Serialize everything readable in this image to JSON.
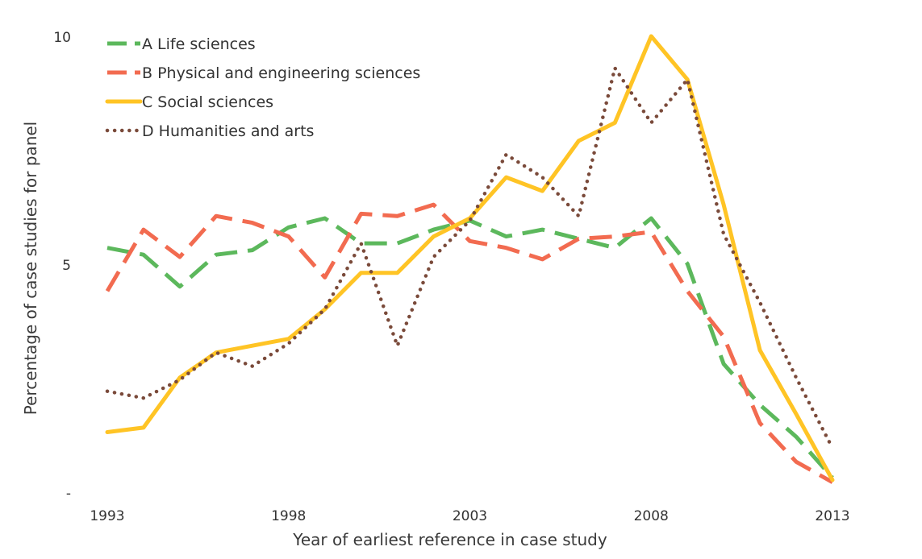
{
  "chart_data": {
    "type": "line",
    "xlabel": "Year of earliest reference in case study",
    "ylabel": "Percentage of case studies for panel",
    "x": [
      1993,
      1994,
      1995,
      1996,
      1997,
      1998,
      1999,
      2000,
      2001,
      2002,
      2003,
      2004,
      2005,
      2006,
      2007,
      2008,
      2009,
      2010,
      2011,
      2012,
      2013
    ],
    "xlim": [
      1993,
      2013
    ],
    "ylim": [
      0,
      10
    ],
    "x_ticks": [
      "1993",
      "1998",
      "2003",
      "2008",
      "2013"
    ],
    "y_ticks": [
      "-",
      "5",
      "10"
    ],
    "grid": false,
    "legend_position": "top-left",
    "series": [
      {
        "name": "A Life sciences",
        "color": "#5cb85c",
        "dash": "dashed",
        "values": [
          5.35,
          5.2,
          4.5,
          5.2,
          5.3,
          5.8,
          6.0,
          5.45,
          5.45,
          5.75,
          5.95,
          5.6,
          5.75,
          5.55,
          5.35,
          6.0,
          5.0,
          2.8,
          1.9,
          1.2,
          0.3
        ]
      },
      {
        "name": "B Physical and engineering sciences",
        "color": "#f26b50",
        "dash": "dashed",
        "values": [
          4.4,
          5.75,
          5.15,
          6.05,
          5.9,
          5.6,
          4.7,
          6.1,
          6.05,
          6.3,
          5.5,
          5.35,
          5.1,
          5.55,
          5.6,
          5.7,
          4.4,
          3.4,
          1.5,
          0.65,
          0.2
        ]
      },
      {
        "name": "C Social sciences",
        "color": "#ffc425",
        "dash": "solid",
        "values": [
          1.3,
          1.4,
          2.5,
          3.05,
          3.2,
          3.35,
          4.0,
          4.8,
          4.8,
          5.6,
          6.0,
          6.9,
          6.6,
          7.7,
          8.1,
          10.0,
          9.05,
          6.3,
          3.1,
          1.7,
          0.25
        ]
      },
      {
        "name": "D Humanities and arts",
        "color": "#7a4a3a",
        "dash": "dotted",
        "values": [
          2.2,
          2.05,
          2.45,
          3.05,
          2.75,
          3.25,
          4.0,
          5.45,
          3.2,
          5.15,
          5.95,
          7.4,
          6.9,
          6.05,
          9.3,
          8.1,
          9.05,
          5.65,
          4.15,
          2.5,
          0.95
        ]
      }
    ]
  }
}
